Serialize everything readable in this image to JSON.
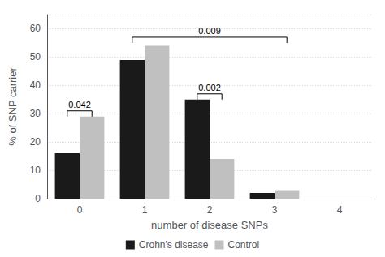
{
  "chart_data": {
    "type": "bar",
    "categories": [
      0,
      1,
      2,
      3,
      4
    ],
    "series": [
      {
        "name": "Crohn's disease",
        "color": "#1a1a1a",
        "values": [
          16,
          49,
          35,
          2,
          0
        ]
      },
      {
        "name": "Control",
        "color": "#c0c0c0",
        "values": [
          29,
          54,
          14,
          3,
          0
        ]
      }
    ],
    "xlabel": "number of disease SNPs",
    "ylabel": "% of SNP carrier",
    "ylim": [
      0,
      65
    ],
    "yticks": [
      0,
      10,
      20,
      30,
      40,
      50,
      60
    ],
    "grid": true,
    "legend": "bottom",
    "annotations": [
      {
        "text": "0.042",
        "x_from": 0,
        "x_to": 0,
        "y": 31
      },
      {
        "text": "0.002",
        "x_from": 2,
        "x_to": 2,
        "y": 37
      },
      {
        "text": "0.009",
        "x_from": 1,
        "x_to": 3,
        "y": 57
      }
    ]
  }
}
